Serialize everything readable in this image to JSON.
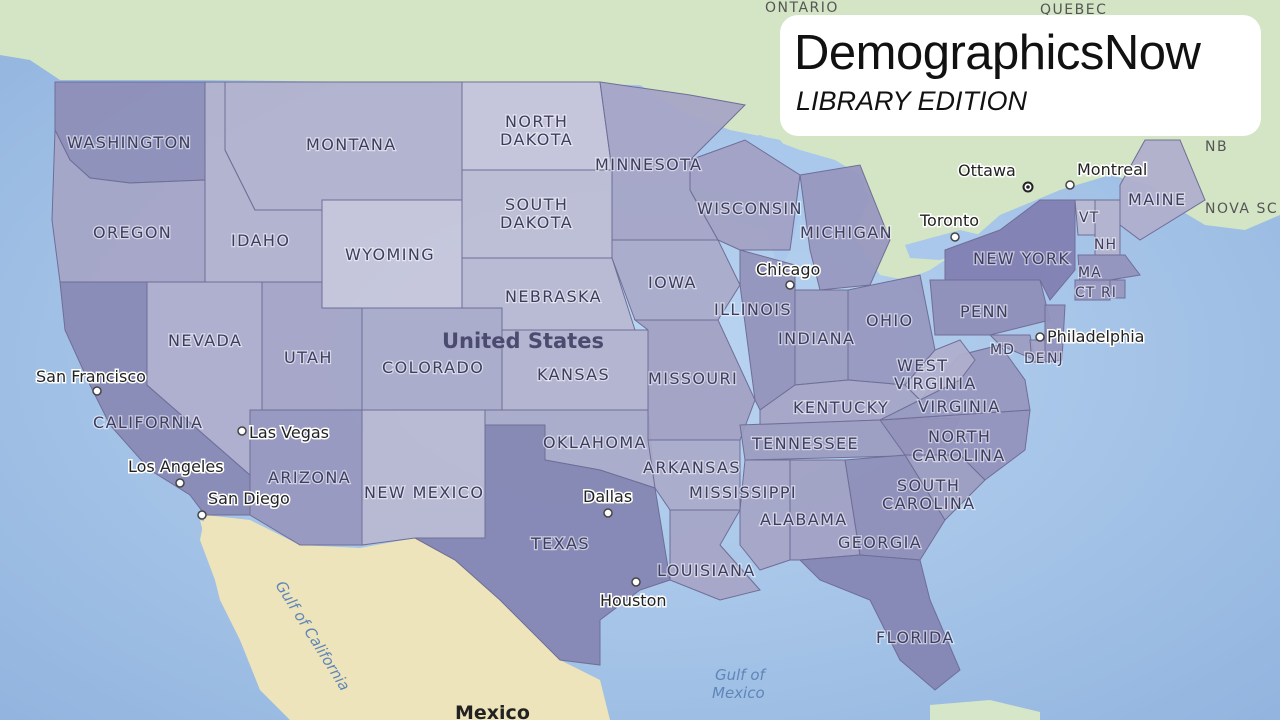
{
  "brand": {
    "title": "DemographicsNow",
    "subtitle": "LIBRARY EDITION"
  },
  "map": {
    "country_label": "United States",
    "neighbor_country_label": "Mexico",
    "states": [
      {
        "id": "WA",
        "label": "WASHINGTON",
        "shade": 0.75
      },
      {
        "id": "OR",
        "label": "OREGON",
        "shade": 0.5
      },
      {
        "id": "CA",
        "label": "CALIFORNIA",
        "shade": 0.8
      },
      {
        "id": "ID",
        "label": "IDAHO",
        "shade": 0.35
      },
      {
        "id": "NV",
        "label": "NEVADA",
        "shade": 0.4
      },
      {
        "id": "MT",
        "label": "MONTANA",
        "shade": 0.35
      },
      {
        "id": "WY",
        "label": "WYOMING",
        "shade": 0.15
      },
      {
        "id": "UT",
        "label": "UTAH",
        "shade": 0.5
      },
      {
        "id": "CO",
        "label": "COLORADO",
        "shade": 0.45
      },
      {
        "id": "AZ",
        "label": "ARIZONA",
        "shade": 0.65
      },
      {
        "id": "NM",
        "label": "NEW MEXICO",
        "shade": 0.3
      },
      {
        "id": "ND",
        "label": "NORTH DAKOTA",
        "shade": 0.15
      },
      {
        "id": "SD",
        "label": "SOUTH DAKOTA",
        "shade": 0.25
      },
      {
        "id": "NE",
        "label": "NEBRASKA",
        "shade": 0.3
      },
      {
        "id": "KS",
        "label": "KANSAS",
        "shade": 0.35
      },
      {
        "id": "OK",
        "label": "OKLAHOMA",
        "shade": 0.45
      },
      {
        "id": "TX",
        "label": "TEXAS",
        "shade": 0.85
      },
      {
        "id": "MN",
        "label": "MINNESOTA",
        "shade": 0.5
      },
      {
        "id": "IA",
        "label": "IOWA",
        "shade": 0.45
      },
      {
        "id": "MO",
        "label": "MISSOURI",
        "shade": 0.55
      },
      {
        "id": "AR",
        "label": "ARKANSAS",
        "shade": 0.45
      },
      {
        "id": "LA",
        "label": "LOUISIANA",
        "shade": 0.5
      },
      {
        "id": "WI",
        "label": "WISCONSIN",
        "shade": 0.55
      },
      {
        "id": "IL",
        "label": "ILLINOIS",
        "shade": 0.7
      },
      {
        "id": "MI",
        "label": "MICHIGAN",
        "shade": 0.65
      },
      {
        "id": "IN",
        "label": "INDIANA",
        "shade": 0.6
      },
      {
        "id": "OH",
        "label": "OHIO",
        "shade": 0.65
      },
      {
        "id": "KY",
        "label": "KENTUCKY",
        "shade": 0.5
      },
      {
        "id": "TN",
        "label": "TENNESSEE",
        "shade": 0.6
      },
      {
        "id": "MS",
        "label": "MISSISSIPPI",
        "shade": 0.5
      },
      {
        "id": "AL",
        "label": "ALABAMA",
        "shade": 0.55
      },
      {
        "id": "GA",
        "label": "GEORGIA",
        "shade": 0.75
      },
      {
        "id": "FL",
        "label": "FLORIDA",
        "shade": 0.85
      },
      {
        "id": "SC",
        "label": "SOUTH CAROLINA",
        "shade": 0.6
      },
      {
        "id": "NC",
        "label": "NORTH CAROLINA",
        "shade": 0.7
      },
      {
        "id": "VA",
        "label": "VIRGINIA",
        "shade": 0.65
      },
      {
        "id": "WV",
        "label": "WEST VIRGINIA",
        "shade": 0.4
      },
      {
        "id": "PA",
        "label": "PENN",
        "shade": 0.75
      },
      {
        "id": "NY",
        "label": "NEW YORK",
        "shade": 0.9
      },
      {
        "id": "ME",
        "label": "MAINE",
        "shade": 0.4
      },
      {
        "id": "VT",
        "label": "VT",
        "shade": 0.3
      },
      {
        "id": "NH",
        "label": "NH",
        "shade": 0.35
      },
      {
        "id": "MA",
        "label": "MA",
        "shade": 0.7
      },
      {
        "id": "CT",
        "label": "CT",
        "shade": 0.65
      },
      {
        "id": "RI",
        "label": "RI",
        "shade": 0.65
      },
      {
        "id": "MD",
        "label": "MD",
        "shade": 0.6
      },
      {
        "id": "DE",
        "label": "DE",
        "shade": 0.55
      },
      {
        "id": "NJ",
        "label": "NJ",
        "shade": 0.7
      }
    ],
    "cities": [
      {
        "name": "San Francisco"
      },
      {
        "name": "Los Angeles"
      },
      {
        "name": "San Diego"
      },
      {
        "name": "Las Vegas"
      },
      {
        "name": "Dallas"
      },
      {
        "name": "Houston"
      },
      {
        "name": "Chicago"
      },
      {
        "name": "Philadelphia"
      },
      {
        "name": "Toronto"
      },
      {
        "name": "Ottawa"
      },
      {
        "name": "Montreal"
      }
    ],
    "regions": [
      "ONTARIO",
      "QUEBEC",
      "NB",
      "NOVA SC"
    ],
    "water": [
      "Gulf of California",
      "Gulf of",
      "Mexico"
    ]
  },
  "colors": {
    "ocean": "#a7c6ea",
    "land": "#d6e6c8",
    "mexico_land": "#efe6c0",
    "shade_light": "#d5d4e2",
    "shade_dark": "#7676aa"
  }
}
